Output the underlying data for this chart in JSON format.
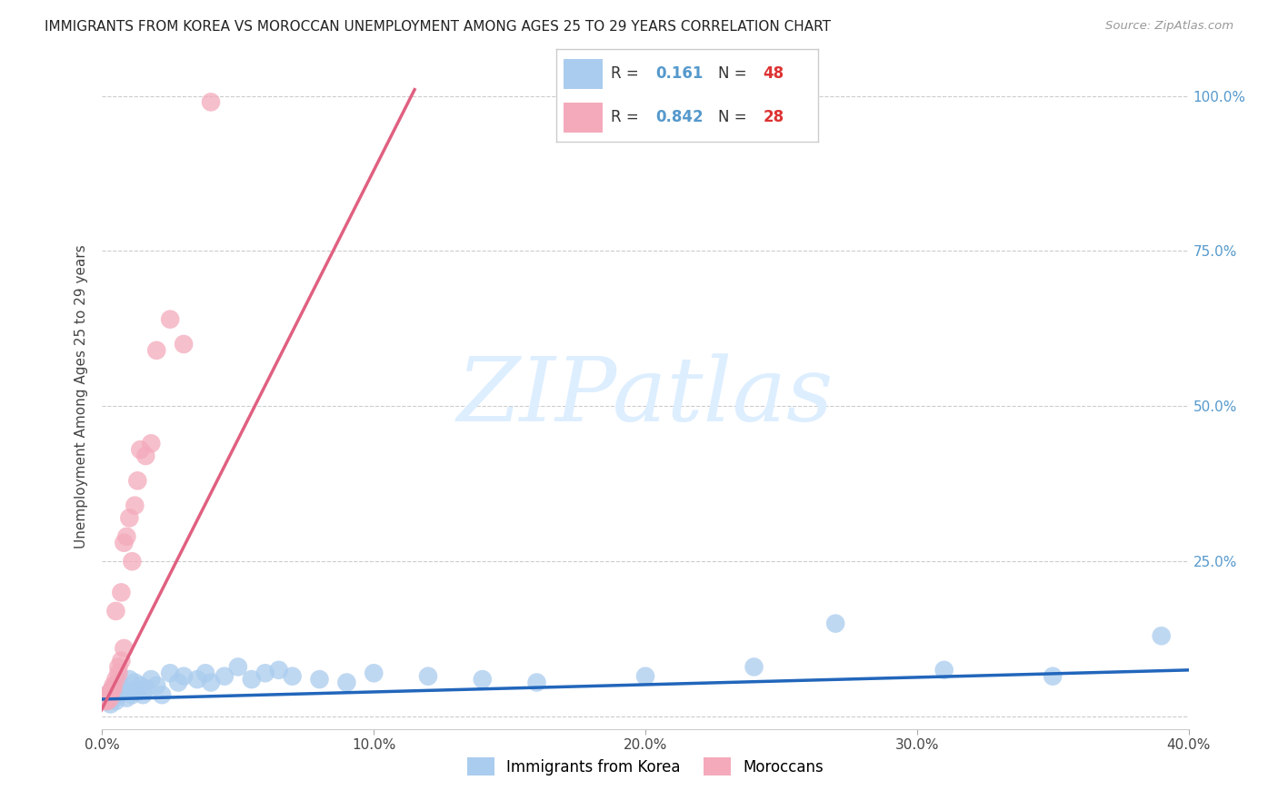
{
  "title": "IMMIGRANTS FROM KOREA VS MOROCCAN UNEMPLOYMENT AMONG AGES 25 TO 29 YEARS CORRELATION CHART",
  "source": "Source: ZipAtlas.com",
  "ylabel": "Unemployment Among Ages 25 to 29 years",
  "xlim": [
    0.0,
    0.4
  ],
  "ylim": [
    -0.02,
    1.05
  ],
  "yticks": [
    0.0,
    0.25,
    0.5,
    0.75,
    1.0
  ],
  "ytick_labels": [
    "",
    "25.0%",
    "50.0%",
    "75.0%",
    "100.0%"
  ],
  "xticks": [
    0.0,
    0.1,
    0.2,
    0.3,
    0.4
  ],
  "xtick_labels": [
    "0.0%",
    "10.0%",
    "20.0%",
    "30.0%",
    "40.0%"
  ],
  "korea_color": "#aaccee",
  "morocco_color": "#f4aabb",
  "korea_line_color": "#2266bb",
  "morocco_line_color": "#e06080",
  "r_text_color": "#5599cc",
  "n_text_color": "#dd3333",
  "label_text_color": "#333333",
  "watermark_color": "#ddeeff",
  "background_color": "#ffffff",
  "grid_color": "#cccccc",
  "korea_R": 0.161,
  "korea_N": 48,
  "morocco_R": 0.842,
  "morocco_N": 28,
  "korea_trend_x": [
    0.0,
    0.4
  ],
  "korea_trend_y": [
    0.028,
    0.075
  ],
  "morocco_trend_x": [
    -0.005,
    0.115
  ],
  "morocco_trend_y": [
    -0.03,
    1.01
  ],
  "korea_scatter_x": [
    0.001,
    0.002,
    0.002,
    0.003,
    0.003,
    0.004,
    0.004,
    0.005,
    0.005,
    0.006,
    0.006,
    0.007,
    0.008,
    0.009,
    0.01,
    0.011,
    0.012,
    0.013,
    0.014,
    0.015,
    0.016,
    0.018,
    0.02,
    0.022,
    0.025,
    0.028,
    0.03,
    0.035,
    0.038,
    0.04,
    0.045,
    0.05,
    0.055,
    0.06,
    0.065,
    0.07,
    0.08,
    0.09,
    0.1,
    0.12,
    0.14,
    0.16,
    0.2,
    0.24,
    0.27,
    0.31,
    0.35,
    0.39
  ],
  "korea_scatter_y": [
    0.03,
    0.035,
    0.025,
    0.04,
    0.02,
    0.045,
    0.03,
    0.05,
    0.025,
    0.055,
    0.035,
    0.04,
    0.045,
    0.03,
    0.06,
    0.035,
    0.055,
    0.04,
    0.05,
    0.035,
    0.045,
    0.06,
    0.05,
    0.035,
    0.07,
    0.055,
    0.065,
    0.06,
    0.07,
    0.055,
    0.065,
    0.08,
    0.06,
    0.07,
    0.075,
    0.065,
    0.06,
    0.055,
    0.07,
    0.065,
    0.06,
    0.055,
    0.065,
    0.08,
    0.15,
    0.075,
    0.065,
    0.13
  ],
  "morocco_scatter_x": [
    0.001,
    0.001,
    0.002,
    0.002,
    0.003,
    0.003,
    0.004,
    0.004,
    0.005,
    0.005,
    0.006,
    0.006,
    0.007,
    0.007,
    0.008,
    0.008,
    0.009,
    0.01,
    0.011,
    0.012,
    0.013,
    0.014,
    0.016,
    0.018,
    0.02,
    0.025,
    0.03,
    0.04
  ],
  "morocco_scatter_y": [
    0.025,
    0.03,
    0.035,
    0.025,
    0.04,
    0.03,
    0.045,
    0.05,
    0.06,
    0.17,
    0.07,
    0.08,
    0.09,
    0.2,
    0.11,
    0.28,
    0.29,
    0.32,
    0.25,
    0.34,
    0.38,
    0.43,
    0.42,
    0.44,
    0.59,
    0.64,
    0.6,
    0.99
  ]
}
